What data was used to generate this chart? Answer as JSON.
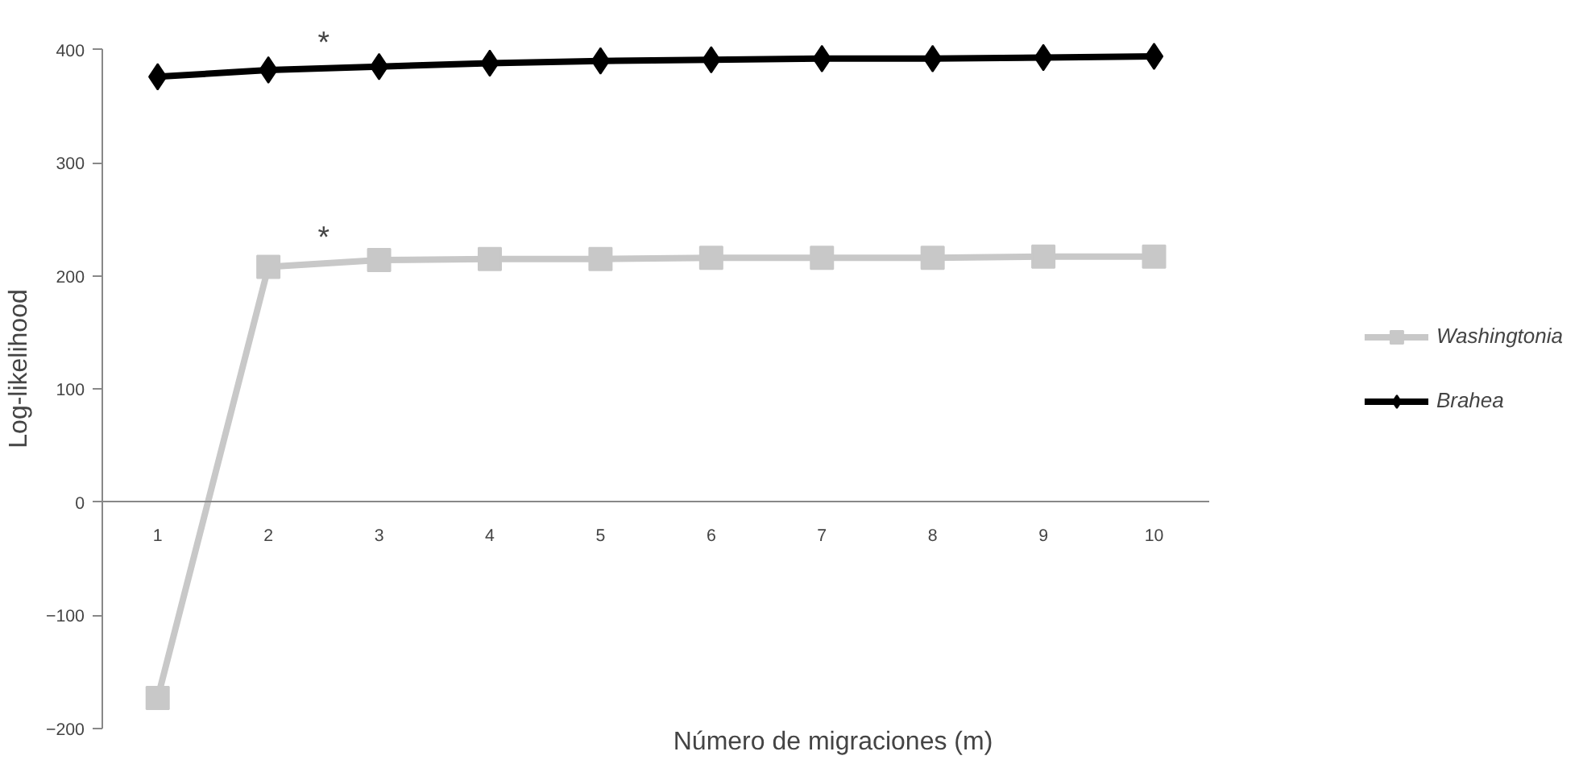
{
  "chart_data": {
    "type": "line",
    "xlabel": "Número de migraciones (m)",
    "ylabel": "Log-likelihood",
    "categories": [
      "1",
      "2",
      "3",
      "4",
      "5",
      "6",
      "7",
      "8",
      "9",
      "10"
    ],
    "series": [
      {
        "name": "Washingtonia",
        "color": "#c8c8c8",
        "marker": "square",
        "values": [
          -173,
          208,
          214,
          215,
          215,
          216,
          216,
          216,
          217,
          217
        ]
      },
      {
        "name": "Brahea",
        "color": "#000000",
        "marker": "diamond",
        "values": [
          376,
          382,
          385,
          388,
          390,
          391,
          392,
          392,
          393,
          394
        ]
      }
    ],
    "ylim": [
      -200,
      400
    ],
    "yticks": [
      -200,
      -100,
      0,
      100,
      200,
      300,
      400
    ],
    "annotations": [
      "*",
      "*"
    ],
    "grid": false,
    "legend": "right"
  }
}
